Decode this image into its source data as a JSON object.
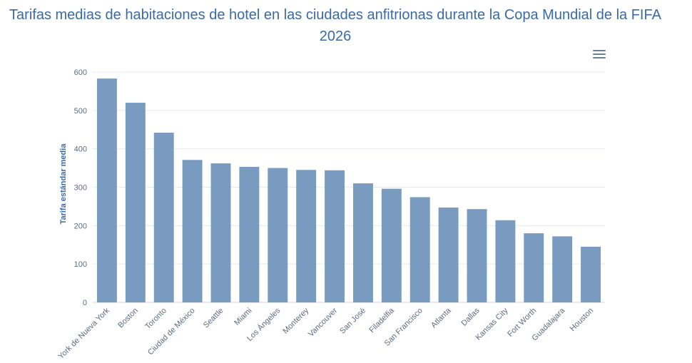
{
  "chart_data": {
    "type": "bar",
    "title": "Tarifas medias de habitaciones de hotel en las ciudades anfitrionas durante la Copa Mundial de la FIFA 2026",
    "xlabel": "",
    "ylabel": "Tarifa estándar media",
    "ylim": [
      0,
      600
    ],
    "yticks": [
      0,
      100,
      200,
      300,
      400,
      500,
      600
    ],
    "grid": true,
    "bar_color": "#7a9bc0",
    "categories": [
      "York de Nueva York",
      "Boston",
      "Toronto",
      "Ciudad de México",
      "Seattle",
      "Miami",
      "Los Ángeles",
      "Monterey",
      "Vancouver",
      "San José",
      "Filadelfia",
      "San Francisco",
      "Atlanta",
      "Dallas",
      "Kansas City",
      "Fort Worth",
      "Guadalajara",
      "Houston"
    ],
    "values": [
      583,
      520,
      442,
      371,
      362,
      353,
      350,
      345,
      344,
      310,
      296,
      274,
      247,
      243,
      214,
      180,
      172,
      145
    ]
  },
  "menu_icon": "hamburger-menu-icon"
}
